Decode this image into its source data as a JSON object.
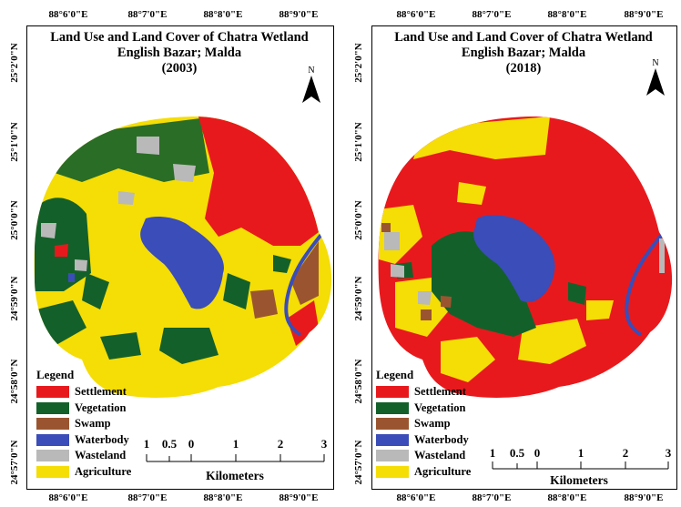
{
  "panels": [
    {
      "title_line1": "Land Use and Land Cover of Chatra Wetland",
      "title_line2": "English Bazar; Malda",
      "year": "(2003)",
      "top_ticks": [
        "88°6'0\"E",
        "88°7'0\"E",
        "88°8'0\"E",
        "88°9'0\"E"
      ],
      "bottom_ticks": [
        "88°6'0\"E",
        "88°7'0\"E",
        "88°8'0\"E",
        "88°9'0\"E"
      ],
      "left_ticks": [
        "25°2'0\"N",
        "25°1'0\"N",
        "25°0'0\"N",
        "24°59'0\"N",
        "24°58'0\"N",
        "24°57'0\"N"
      ]
    },
    {
      "title_line1": "Land Use and Land Cover of Chatra Wetland",
      "title_line2": "English Bazar; Malda",
      "year": "(2018)",
      "top_ticks": [
        "88°6'0\"E",
        "88°7'0\"E",
        "88°8'0\"E",
        "88°9'0\"E"
      ],
      "bottom_ticks": [
        "88°6'0\"E",
        "88°7'0\"E",
        "88°8'0\"E",
        "88°9'0\"E"
      ],
      "left_ticks": [
        "25°2'0\"N",
        "25°1'0\"N",
        "25°0'0\"N",
        "24°59'0\"N",
        "24°58'0\"N",
        "24°57'0\"N"
      ]
    }
  ],
  "north_label": "N",
  "legend": {
    "title": "Legend",
    "items": [
      {
        "label": "Settlement",
        "color": "#e8191c"
      },
      {
        "label": "Vegetation",
        "color": "#14602a"
      },
      {
        "label": "Swamp",
        "color": "#9a5530"
      },
      {
        "label": "Waterbody",
        "color": "#3a4db8"
      },
      {
        "label": "Wasteland",
        "color": "#b9b9b9"
      },
      {
        "label": "Agriculture",
        "color": "#f5dd06"
      }
    ]
  },
  "scale_bar": {
    "labels": [
      "1",
      "0.5",
      "0",
      "1",
      "2",
      "3"
    ],
    "unit": "Kilometers"
  }
}
